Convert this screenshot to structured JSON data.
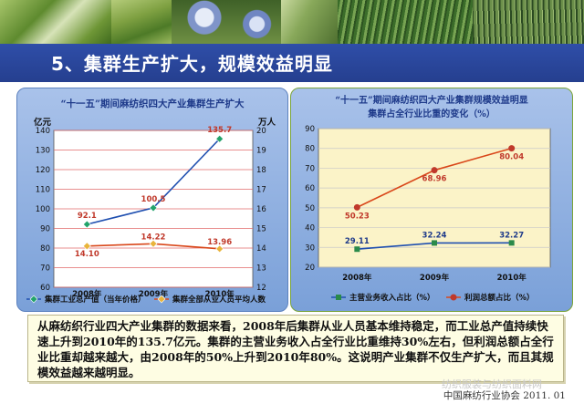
{
  "slide": {
    "title": "5、集群生产扩大，规模效益明显",
    "footer": "中国麻纺行业协会 2011. 01",
    "watermark": "纺织服装与纺织面料网",
    "text": "从麻纺织行业四大产业集群的数据来看，2008年后集群从业人员基本维持稳定，而工业总产值持续快速上升到2010年的135.7亿元。集群的主营业务收入占全行业比重维持30%左右，但利润总额占全行业比重却越来越大，由2008年的50%上升到2010年80%。这说明产业集群不仅生产扩大，而且其规模效益越来越明显。"
  },
  "chart_data": [
    {
      "type": "line",
      "title": "“十一五”期间麻纺织四大产业集群生产扩大",
      "ylabel": "亿元",
      "y2label": "万人",
      "categories": [
        "2008年",
        "2009年",
        "2010年"
      ],
      "ylim": [
        60,
        140
      ],
      "y2lim": [
        12,
        20
      ],
      "grid": true,
      "legend_position": "bottom",
      "series": [
        {
          "name": "集群工业总产值（当年价格）",
          "axis": "left",
          "values": [
            92.1,
            100.5,
            135.7
          ],
          "labels": [
            "92.1",
            "100.5",
            "135.7"
          ],
          "color": "#1f4fb0",
          "marker": "diamond"
        },
        {
          "name": "集群全部从业人员平均人数",
          "axis": "right",
          "values": [
            14.1,
            14.22,
            13.96
          ],
          "labels": [
            "14.10",
            "14.22",
            "13.96"
          ],
          "color": "#d9471a",
          "marker": "diamond"
        }
      ]
    },
    {
      "type": "line",
      "title": "“十一五”期间麻纺织四大产业集群规模效益明显",
      "subtitle": "集群占全行业比重的变化（%）",
      "categories": [
        "2008年",
        "2009年",
        "2010年"
      ],
      "ylim": [
        20,
        90
      ],
      "grid": true,
      "legend_position": "bottom",
      "series": [
        {
          "name": "主营业务收入占比（%）",
          "values": [
            29.11,
            32.24,
            32.27
          ],
          "labels": [
            "29.11",
            "32.24",
            "32.27"
          ],
          "color": "#1f4fb0",
          "marker": "square"
        },
        {
          "name": "利润总额占比（%）",
          "values": [
            50.23,
            68.96,
            80.04
          ],
          "labels": [
            "50.23",
            "68.96",
            "80.04"
          ],
          "color": "#d9471a",
          "marker": "circle"
        }
      ]
    }
  ],
  "colors": {
    "header_bg": "#2b48a0",
    "left_plot_bg": "#ffffff",
    "right_plot_bg": "#fbf3c8",
    "title_color": "#1e3a8a",
    "value_label_color": "#c0392b"
  }
}
